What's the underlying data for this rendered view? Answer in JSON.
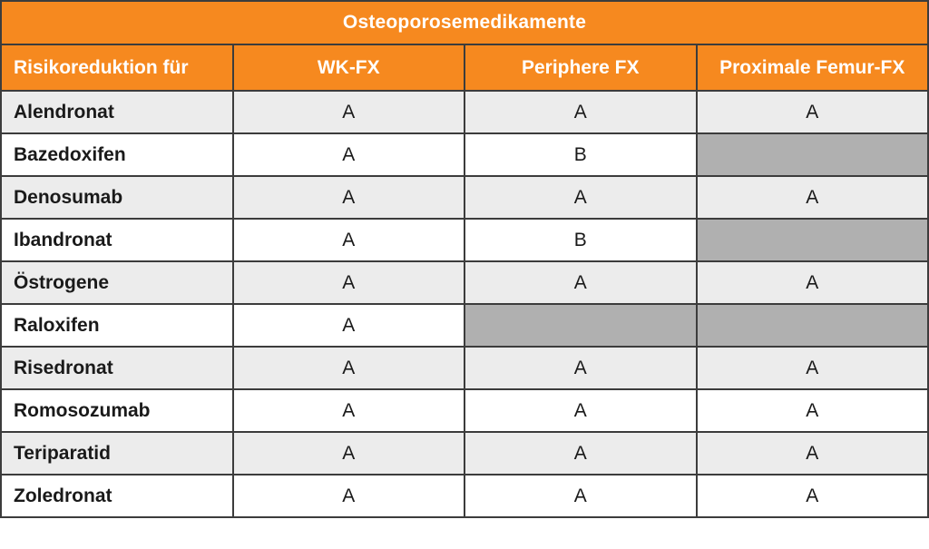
{
  "chart_data": {
    "type": "table",
    "title": "Osteoporosemedikamente",
    "columns": [
      "Risikoreduktion für",
      "WK-FX",
      "Periphere FX",
      "Proximale Femur-FX"
    ],
    "rows": [
      {
        "label": "Alendronat",
        "values": [
          "A",
          "A",
          "A"
        ]
      },
      {
        "label": "Bazedoxifen",
        "values": [
          "A",
          "B",
          null
        ]
      },
      {
        "label": "Denosumab",
        "values": [
          "A",
          "A",
          "A"
        ]
      },
      {
        "label": "Ibandronat",
        "values": [
          "A",
          "B",
          null
        ]
      },
      {
        "label": "Östrogene",
        "values": [
          "A",
          "A",
          "A"
        ]
      },
      {
        "label": "Raloxifen",
        "values": [
          "A",
          null,
          null
        ]
      },
      {
        "label": "Risedronat",
        "values": [
          "A",
          "A",
          "A"
        ]
      },
      {
        "label": "Romosozumab",
        "values": [
          "A",
          "A",
          "A"
        ]
      },
      {
        "label": "Teriparatid",
        "values": [
          "A",
          "A",
          "A"
        ]
      },
      {
        "label": "Zoledronat",
        "values": [
          "A",
          "A",
          "A"
        ]
      }
    ],
    "layout": {
      "row_striping": "alternating light gray / white",
      "null_cells_rendered_as": "solid gray block"
    }
  },
  "colors": {
    "header_orange": "#F6891F",
    "row_stripe_gray": "#ECECEC",
    "row_white": "#FFFFFF",
    "empty_cell_gray": "#B0B0B0",
    "border_dark": "#3C3C3C",
    "header_text": "#FFFFFF",
    "body_text": "#1A1A1A"
  }
}
